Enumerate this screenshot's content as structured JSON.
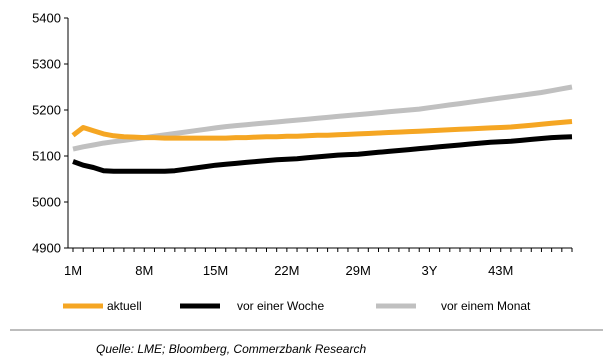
{
  "chart_data": {
    "type": "line",
    "x": [
      "1M",
      "2M",
      "3M",
      "4M",
      "5M",
      "6M",
      "7M",
      "8M",
      "9M",
      "10M",
      "11M",
      "12M",
      "13M",
      "14M",
      "15M",
      "16M",
      "17M",
      "18M",
      "19M",
      "20M",
      "21M",
      "22M",
      "23M",
      "24M",
      "25M",
      "26M",
      "27M",
      "28M",
      "29M",
      "30M",
      "31M",
      "32M",
      "33M",
      "34M",
      "35M",
      "36M",
      "37M",
      "38M",
      "39M",
      "40M",
      "41M",
      "42M",
      "43M",
      "44M",
      "45M",
      "46M",
      "47M",
      "48M",
      "49M",
      "50M"
    ],
    "xticks": [
      "1M",
      "8M",
      "15M",
      "22M",
      "29M",
      "3Y",
      "43M"
    ],
    "yticks": [
      "5400",
      "5300",
      "5200",
      "5100",
      "5000",
      "4900"
    ],
    "ylim": [
      4900,
      5400
    ],
    "series": [
      {
        "name": "aktuell",
        "color": "#f5a623",
        "values": [
          5145,
          5162,
          5155,
          5148,
          5144,
          5142,
          5141,
          5140,
          5140,
          5139,
          5139,
          5139,
          5139,
          5139,
          5139,
          5139,
          5140,
          5140,
          5141,
          5142,
          5142,
          5143,
          5143,
          5144,
          5145,
          5145,
          5146,
          5147,
          5148,
          5149,
          5150,
          5151,
          5152,
          5153,
          5154,
          5155,
          5156,
          5157,
          5158,
          5159,
          5160,
          5161,
          5162,
          5163,
          5165,
          5167,
          5169,
          5171,
          5173,
          5175
        ]
      },
      {
        "name": "vor einer Woche",
        "color": "#000000",
        "values": [
          5088,
          5080,
          5075,
          5068,
          5067,
          5067,
          5067,
          5067,
          5067,
          5067,
          5068,
          5071,
          5074,
          5077,
          5080,
          5082,
          5084,
          5086,
          5088,
          5090,
          5092,
          5093,
          5094,
          5096,
          5098,
          5100,
          5102,
          5103,
          5104,
          5106,
          5108,
          5110,
          5112,
          5114,
          5116,
          5118,
          5120,
          5122,
          5124,
          5126,
          5128,
          5130,
          5131,
          5132,
          5134,
          5136,
          5138,
          5140,
          5141,
          5142
        ]
      },
      {
        "name": "vor einem Monat",
        "color": "#c0c0c0",
        "values": [
          5115,
          5120,
          5124,
          5128,
          5131,
          5134,
          5137,
          5140,
          5143,
          5146,
          5149,
          5152,
          5155,
          5158,
          5161,
          5164,
          5166,
          5168,
          5170,
          5172,
          5174,
          5176,
          5178,
          5180,
          5182,
          5184,
          5186,
          5188,
          5190,
          5192,
          5194,
          5196,
          5198,
          5200,
          5202,
          5205,
          5208,
          5211,
          5214,
          5217,
          5220,
          5223,
          5226,
          5229,
          5232,
          5235,
          5238,
          5242,
          5246,
          5250
        ]
      }
    ],
    "grid": false,
    "legend_position": "bottom"
  },
  "source": "Quelle: LME; Bloomberg, Commerzbank Research"
}
